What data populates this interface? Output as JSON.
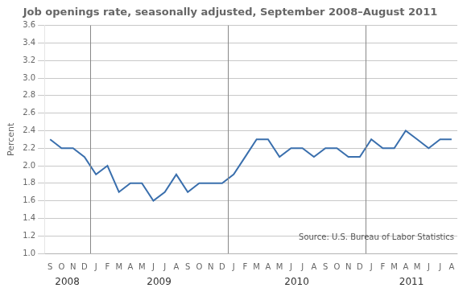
{
  "chart_data": {
    "type": "line",
    "title": "Job openings rate, seasonally adjusted, September 2008–August 2011",
    "ylabel": "Percent",
    "source": "Source: U.S. Bureau of Labor Statistics",
    "categories": [
      "S",
      "O",
      "N",
      "D",
      "J",
      "F",
      "M",
      "A",
      "M",
      "J",
      "J",
      "A",
      "S",
      "O",
      "N",
      "D",
      "J",
      "F",
      "M",
      "A",
      "M",
      "J",
      "J",
      "A",
      "S",
      "O",
      "N",
      "D",
      "J",
      "F",
      "M",
      "A",
      "M",
      "J",
      "J",
      "A"
    ],
    "values": [
      2.3,
      2.2,
      2.2,
      2.1,
      1.9,
      2.0,
      1.7,
      1.8,
      1.8,
      1.6,
      1.7,
      1.9,
      1.7,
      1.8,
      1.8,
      1.8,
      1.9,
      2.1,
      2.3,
      2.3,
      2.1,
      2.2,
      2.2,
      2.1,
      2.2,
      2.2,
      2.1,
      2.1,
      2.3,
      2.2,
      2.2,
      2.4,
      2.3,
      2.2,
      2.3,
      2.3
    ],
    "color": "#3a6fad",
    "ylim": [
      1.0,
      3.6
    ],
    "yticks": [
      {
        "value": 1.0,
        "label": "1.0"
      },
      1.2,
      1.4,
      1.6,
      1.8,
      {
        "value": 2.0,
        "label": "2.0"
      },
      2.2,
      2.4,
      2.6,
      2.8,
      {
        "value": 3.0,
        "label": "3.0"
      },
      3.2,
      3.4,
      3.6
    ],
    "grid": true,
    "annotations": [
      {
        "text": "2008",
        "x": 1.5
      },
      {
        "text": "2009",
        "x": 9.5
      },
      {
        "text": "2010",
        "x": 21.5
      },
      {
        "text": "2011",
        "x": 31.5
      }
    ],
    "vlines": [
      3.5,
      15.5,
      27.5
    ]
  }
}
